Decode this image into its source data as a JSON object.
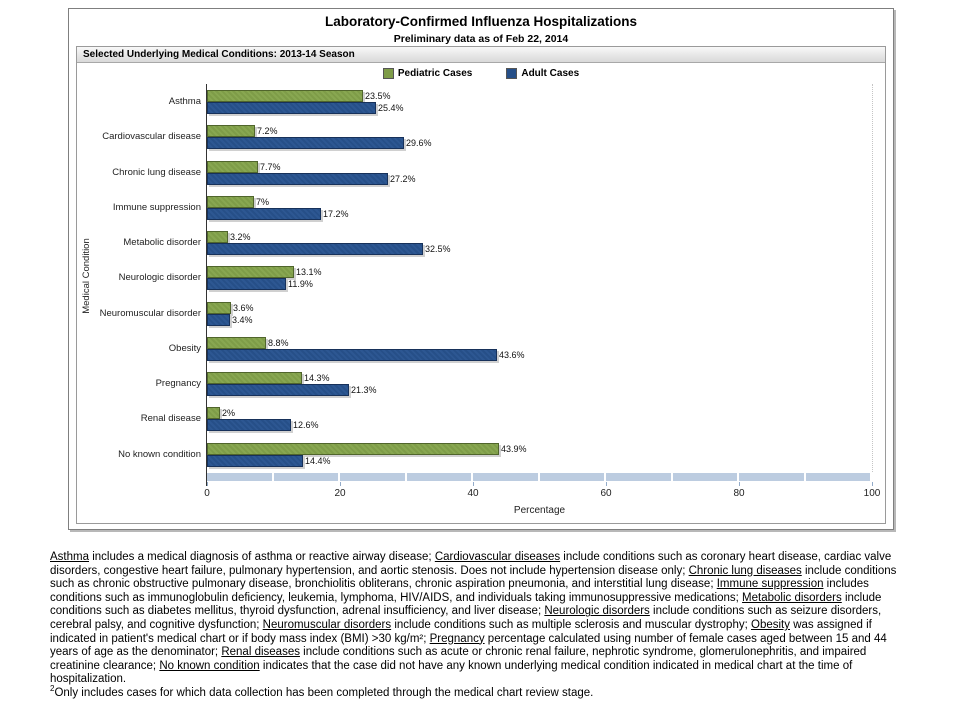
{
  "page": {
    "title": "Laboratory-Confirmed Influenza Hospitalizations",
    "subtitle": "Preliminary data as of Feb 22, 2014"
  },
  "panel": {
    "header_label": "Selected Underlying Medical Conditions: 2013-14 Season"
  },
  "legend": {
    "items": [
      {
        "label": "Pediatric Cases",
        "color": "#7e9c48"
      },
      {
        "label": "Adult Cases",
        "color": "#264f88"
      }
    ]
  },
  "chart_data": {
    "type": "bar",
    "orientation": "horizontal",
    "title": "Selected Underlying Medical Conditions: 2013-14 Season",
    "xlabel": "Percentage",
    "ylabel": "Medical Condition",
    "xlim": [
      0,
      100
    ],
    "xticks": [
      0,
      20,
      40,
      60,
      80,
      100
    ],
    "grid": false,
    "legend_position": "top-center",
    "categories": [
      "Asthma",
      "Cardiovascular disease",
      "Chronic lung disease",
      "Immune suppression",
      "Metabolic disorder",
      "Neurologic disorder",
      "Neuromuscular disorder",
      "Obesity",
      "Pregnancy",
      "Renal disease",
      "No known condition"
    ],
    "series": [
      {
        "name": "Pediatric Cases",
        "color": "#7e9c48",
        "values": [
          23.5,
          7.2,
          7.7,
          7,
          3.2,
          13.1,
          3.6,
          8.8,
          14.3,
          2,
          43.9
        ],
        "labels": [
          "23.5%",
          "7.2%",
          "7.7%",
          "7%",
          "3.2%",
          "13.1%",
          "3.6%",
          "8.8%",
          "14.3%",
          "2%",
          "43.9%"
        ]
      },
      {
        "name": "Adult Cases",
        "color": "#264f88",
        "values": [
          25.4,
          29.6,
          27.2,
          17.2,
          32.5,
          11.9,
          3.4,
          43.6,
          21.3,
          12.6,
          14.4
        ],
        "labels": [
          "25.4%",
          "29.6%",
          "27.2%",
          "17.2%",
          "32.5%",
          "11.9%",
          "3.4%",
          "43.6%",
          "21.3%",
          "12.6%",
          "14.4%"
        ]
      }
    ]
  },
  "colors": {
    "pediatric": "#7e9c48",
    "adult": "#264f88",
    "axis_band": "#bccce0",
    "panel_header_bg": "#e3e3e3"
  },
  "footnote": {
    "segments": [
      {
        "u": true,
        "t": "Asthma"
      },
      {
        "u": false,
        "t": " includes a medical diagnosis of asthma or reactive airway disease; "
      },
      {
        "u": true,
        "t": "Cardiovascular diseases"
      },
      {
        "u": false,
        "t": " include conditions such as coronary heart disease, cardiac valve disorders, congestive heart failure, pulmonary hypertension, and aortic stenosis.  Does not include hypertension disease only;  "
      },
      {
        "u": true,
        "t": "Chronic lung diseases"
      },
      {
        "u": false,
        "t": " include conditions such as chronic obstructive pulmonary disease, bronchiolitis obliterans, chronic aspiration pneumonia, and interstitial lung disease;  "
      },
      {
        "u": true,
        "t": "Immune suppression"
      },
      {
        "u": false,
        "t": " includes conditions such as immunoglobulin deficiency, leukemia, lymphoma, HIV/AIDS,  and individuals taking immunosuppressive medications; "
      },
      {
        "u": true,
        "t": "Metabolic disorders"
      },
      {
        "u": false,
        "t": " include conditions such as diabetes mellitus, thyroid dysfunction, adrenal insufficiency, and liver disease;  "
      },
      {
        "u": true,
        "t": "Neurologic disorders"
      },
      {
        "u": false,
        "t": " include conditions such as seizure disorders, cerebral palsy, and cognitive dysfunction;  "
      },
      {
        "u": true,
        "t": "Neuromuscular disorders"
      },
      {
        "u": false,
        "t": " include conditions such as multiple sclerosis and muscular dystrophy;  "
      },
      {
        "u": true,
        "t": "Obesity"
      },
      {
        "u": false,
        "t": " was assigned if indicated in patient's medical chart or if body mass index (BMI) >30 kg/m²;  "
      },
      {
        "u": true,
        "t": "Pregnancy"
      },
      {
        "u": false,
        "t": " percentage calculated using number of female cases aged between 15 and 44 years of age as the denominator;  "
      },
      {
        "u": true,
        "t": "Renal diseases"
      },
      {
        "u": false,
        "t": " include conditions such as acute or chronic renal failure, nephrotic syndrome, glomerulonephritis, and impaired creatinine clearance;  "
      },
      {
        "u": true,
        "t": "No known condition"
      },
      {
        "u": false,
        "t": " indicates that the case did not have any known underlying medical condition indicated in medical chart at the time of hospitalization."
      }
    ],
    "secondary_sup": "2",
    "secondary_text": "Only includes cases for which data collection has been completed through the medical chart review stage."
  }
}
